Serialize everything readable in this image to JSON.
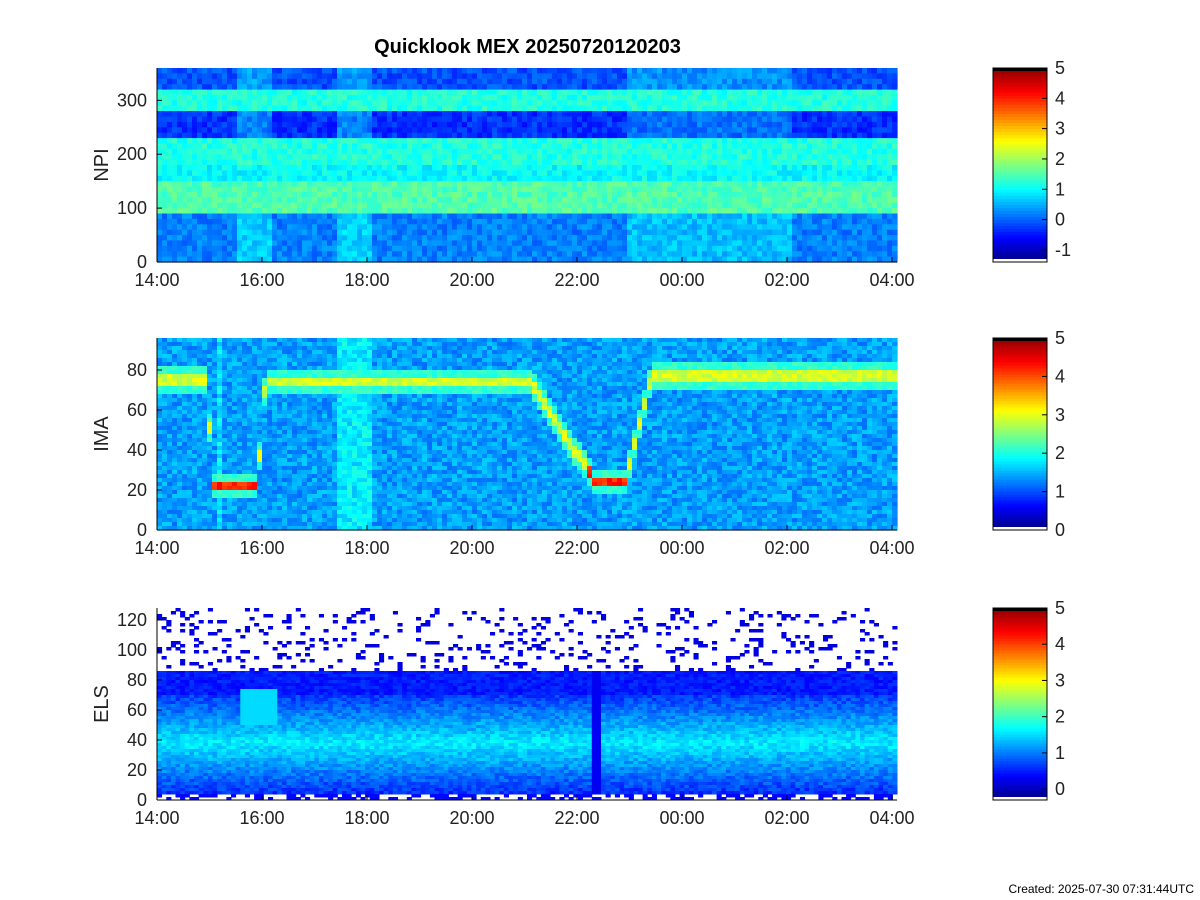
{
  "title": "Quicklook MEX 20250720120203",
  "footer": "Created: 2025-07-30 07:31:44UTC",
  "chart_data": [
    {
      "type": "heatmap",
      "ylabel": "NPI",
      "x_ticks": [
        "14:00",
        "16:00",
        "18:00",
        "20:00",
        "22:00",
        "00:00",
        "02:00",
        "04:00"
      ],
      "y_ticks": [
        0,
        100,
        200,
        300
      ],
      "ylim": [
        0,
        360
      ],
      "colorbar_ticks": [
        -1,
        0,
        1,
        2,
        3,
        4,
        5
      ],
      "colorbar_range": [
        -1.4,
        5
      ],
      "description_values": {
        "bands": [
          {
            "from": 0,
            "to": 90,
            "level": 0.2
          },
          {
            "from": 90,
            "to": 150,
            "level": 1.5
          },
          {
            "from": 150,
            "to": 180,
            "level": 1.0
          },
          {
            "from": 180,
            "to": 235,
            "level": 1.2
          },
          {
            "from": 235,
            "to": 280,
            "level": -0.3
          },
          {
            "from": 280,
            "to": 320,
            "level": 1.2
          },
          {
            "from": 320,
            "to": 360,
            "level": -0.1
          }
        ]
      }
    },
    {
      "type": "heatmap",
      "ylabel": "IMA",
      "x_ticks": [
        "14:00",
        "16:00",
        "18:00",
        "20:00",
        "22:00",
        "00:00",
        "02:00",
        "04:00"
      ],
      "y_ticks": [
        0,
        20,
        40,
        60,
        80
      ],
      "ylim": [
        0,
        96
      ],
      "colorbar_ticks": [
        0,
        1,
        2,
        3,
        4,
        5
      ],
      "colorbar_range": [
        0,
        5
      ],
      "ridge": [
        {
          "t": "14:00",
          "y": 75
        },
        {
          "t": "15:00",
          "y": 22
        },
        {
          "t": "15:45",
          "y": 22
        },
        {
          "t": "16:00",
          "y": 74
        },
        {
          "t": "21:00",
          "y": 74
        },
        {
          "t": "22:15",
          "y": 24
        },
        {
          "t": "22:45",
          "y": 24
        },
        {
          "t": "23:15",
          "y": 77
        },
        {
          "t": "04:00",
          "y": 77
        }
      ]
    },
    {
      "type": "heatmap",
      "ylabel": "ELS",
      "x_ticks": [
        "14:00",
        "16:00",
        "18:00",
        "20:00",
        "22:00",
        "00:00",
        "02:00",
        "04:00"
      ],
      "y_ticks": [
        0,
        20,
        40,
        60,
        80,
        100,
        120
      ],
      "ylim": [
        0,
        128
      ],
      "colorbar_ticks": [
        0,
        1,
        2,
        3,
        4,
        5
      ],
      "colorbar_range": [
        -0.3,
        5
      ],
      "peak_energy_bin": 38
    }
  ]
}
